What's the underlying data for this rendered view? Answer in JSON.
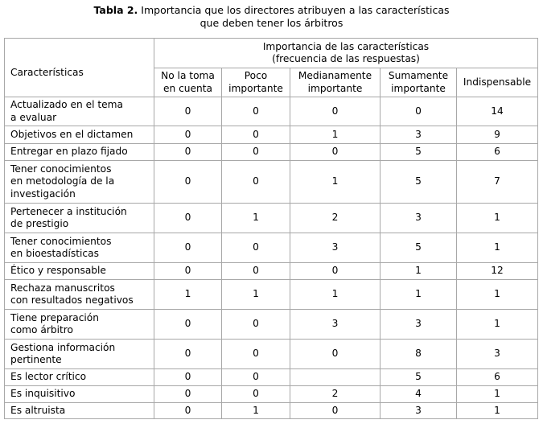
{
  "title": {
    "label": "Tabla 2.",
    "line1": "Importancia que los directores atribuyen a las características",
    "line2": "que deben tener los árbitros"
  },
  "table": {
    "row_header": "Características",
    "group_header_line1": "Importancia de las características",
    "group_header_line2": "(frecuencia de las respuestas)",
    "columns": [
      [
        "No la toma",
        "en cuenta"
      ],
      [
        "Poco",
        "importante"
      ],
      [
        "Medianamente",
        "importante"
      ],
      [
        "Sumamente",
        "importante"
      ],
      [
        "Indispensable"
      ]
    ],
    "rows": [
      {
        "label": [
          "Actualizado en el tema",
          "a evaluar"
        ],
        "values": [
          "0",
          "0",
          "0",
          "0",
          "14"
        ]
      },
      {
        "label": [
          "Objetivos en el dictamen"
        ],
        "values": [
          "0",
          "0",
          "1",
          "3",
          "9"
        ]
      },
      {
        "label": [
          "Entregar en plazo fijado"
        ],
        "values": [
          "0",
          "0",
          "0",
          "5",
          "6"
        ]
      },
      {
        "label": [
          "Tener conocimientos",
          "en metodología de la",
          "investigación"
        ],
        "values": [
          "0",
          "0",
          "1",
          "5",
          "7"
        ]
      },
      {
        "label": [
          "Pertenecer a institución",
          "de prestigio"
        ],
        "values": [
          "0",
          "1",
          "2",
          "3",
          "1"
        ]
      },
      {
        "label": [
          "Tener conocimientos",
          "en bioestadísticas"
        ],
        "values": [
          "0",
          "0",
          "3",
          "5",
          "1"
        ]
      },
      {
        "label": [
          "Ético y responsable"
        ],
        "values": [
          "0",
          "0",
          "0",
          "1",
          "12"
        ]
      },
      {
        "label": [
          "Rechaza manuscritos",
          "con resultados negativos"
        ],
        "values": [
          "1",
          "1",
          "1",
          "1",
          "1"
        ]
      },
      {
        "label": [
          "Tiene preparación",
          "como árbitro"
        ],
        "values": [
          "0",
          "0",
          "3",
          "3",
          "1"
        ]
      },
      {
        "label": [
          "Gestiona información",
          "pertinente"
        ],
        "values": [
          "0",
          "0",
          "0",
          "8",
          "3"
        ]
      },
      {
        "label": [
          "Es lector crítico"
        ],
        "values": [
          "0",
          "0",
          "",
          "5",
          "6"
        ]
      },
      {
        "label": [
          "Es inquisitivo"
        ],
        "values": [
          "0",
          "0",
          "2",
          "4",
          "1"
        ]
      },
      {
        "label": [
          "Es altruista"
        ],
        "values": [
          "0",
          "1",
          "0",
          "3",
          "1"
        ]
      }
    ]
  }
}
